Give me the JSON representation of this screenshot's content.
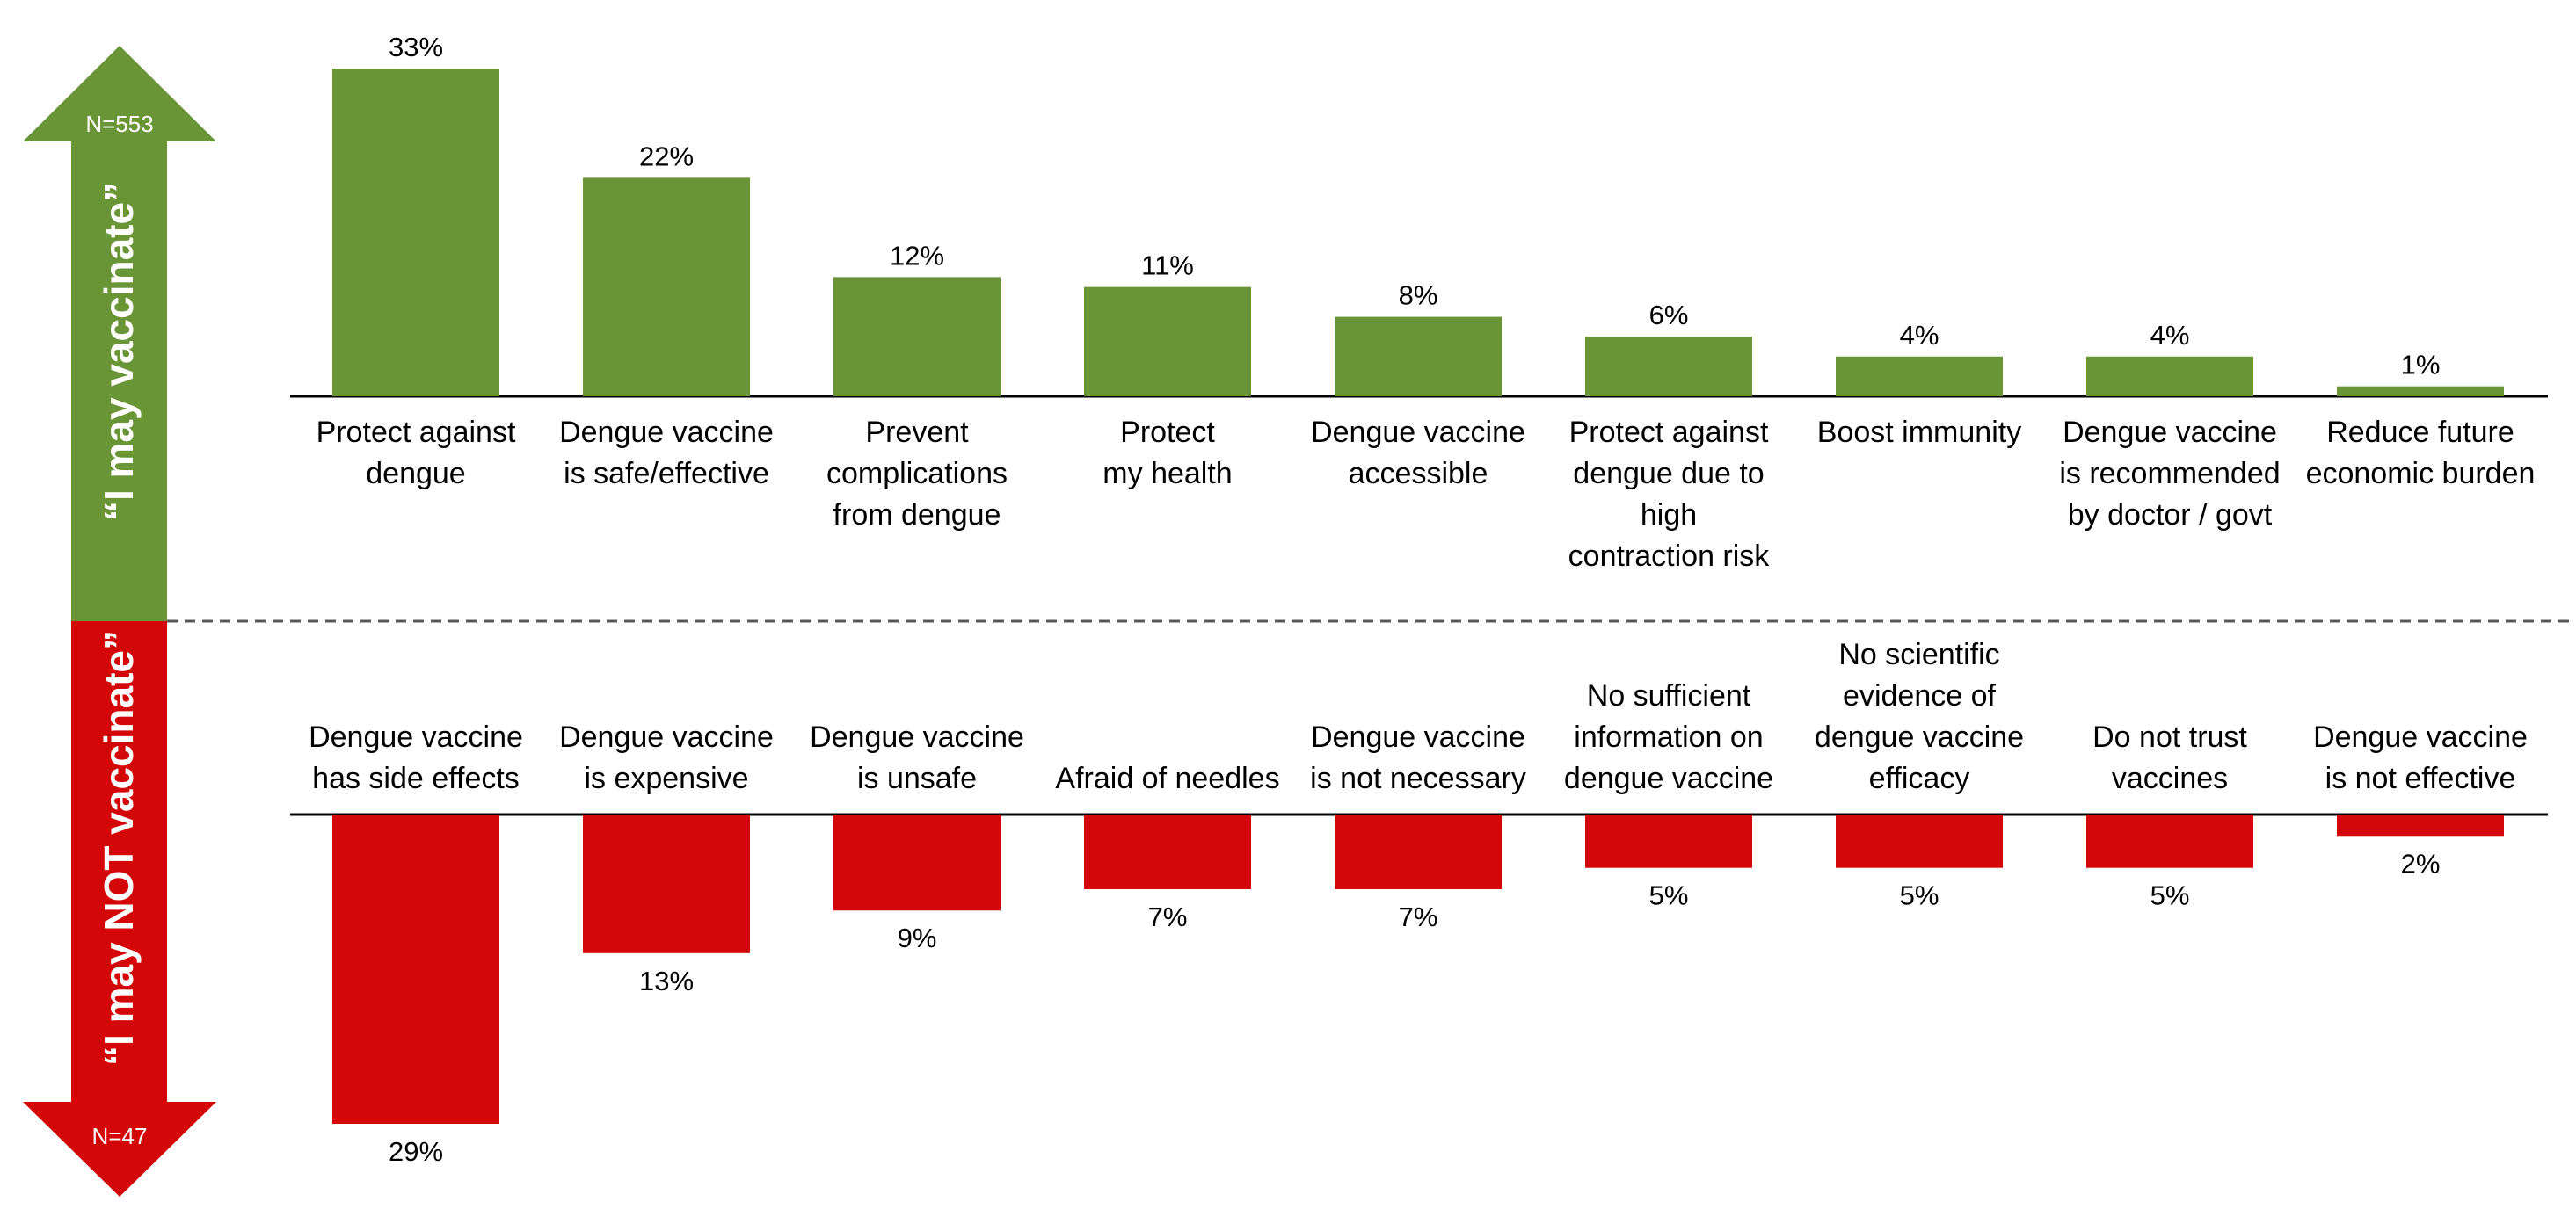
{
  "colors": {
    "positive": "#6a9537",
    "negative": "#d30707",
    "axis": "#000000",
    "divider": "#595959"
  },
  "arrows": {
    "up_label": "“I may vaccinate”",
    "up_n": "N=553",
    "down_label": "“I may NOT vaccinate”",
    "down_n": "N=47"
  },
  "chart_data": [
    {
      "type": "bar",
      "orientation": "up",
      "group": "“I may vaccinate”",
      "sample": "N=553",
      "ylim": [
        0,
        33
      ],
      "categories": [
        [
          "Protect against",
          "dengue"
        ],
        [
          "Dengue vaccine",
          "is safe/effective"
        ],
        [
          "Prevent",
          "complications",
          "from dengue"
        ],
        [
          "Protect",
          "my health"
        ],
        [
          "Dengue vaccine",
          "accessible"
        ],
        [
          "Protect against",
          "dengue due to",
          "high",
          "contraction risk"
        ],
        [
          "Boost immunity"
        ],
        [
          "Dengue vaccine",
          "is recommended",
          "by doctor / govt"
        ],
        [
          "Reduce future",
          "economic burden"
        ]
      ],
      "values": [
        33,
        22,
        12,
        11,
        8,
        6,
        4,
        4,
        1
      ],
      "value_labels": [
        "33%",
        "22%",
        "12%",
        "11%",
        "8%",
        "6%",
        "4%",
        "4%",
        "1%"
      ]
    },
    {
      "type": "bar",
      "orientation": "down",
      "group": "“I may NOT vaccinate”",
      "sample": "N=47",
      "ylim": [
        0,
        29
      ],
      "categories": [
        [
          "Dengue vaccine",
          "has side effects"
        ],
        [
          "Dengue vaccine",
          "is expensive"
        ],
        [
          "Dengue vaccine",
          "is unsafe"
        ],
        [
          "Afraid of needles"
        ],
        [
          "Dengue vaccine",
          "is not necessary"
        ],
        [
          "No sufficient",
          "information on",
          "dengue vaccine"
        ],
        [
          "No scientific",
          "evidence of",
          "dengue vaccine",
          "efficacy"
        ],
        [
          "Do not trust",
          "vaccines"
        ],
        [
          "Dengue vaccine",
          "is not effective"
        ]
      ],
      "values": [
        29,
        13,
        9,
        7,
        7,
        5,
        5,
        5,
        2
      ],
      "value_labels": [
        "29%",
        "13%",
        "9%",
        "7%",
        "7%",
        "5%",
        "5%",
        "5%",
        "2%"
      ]
    }
  ]
}
